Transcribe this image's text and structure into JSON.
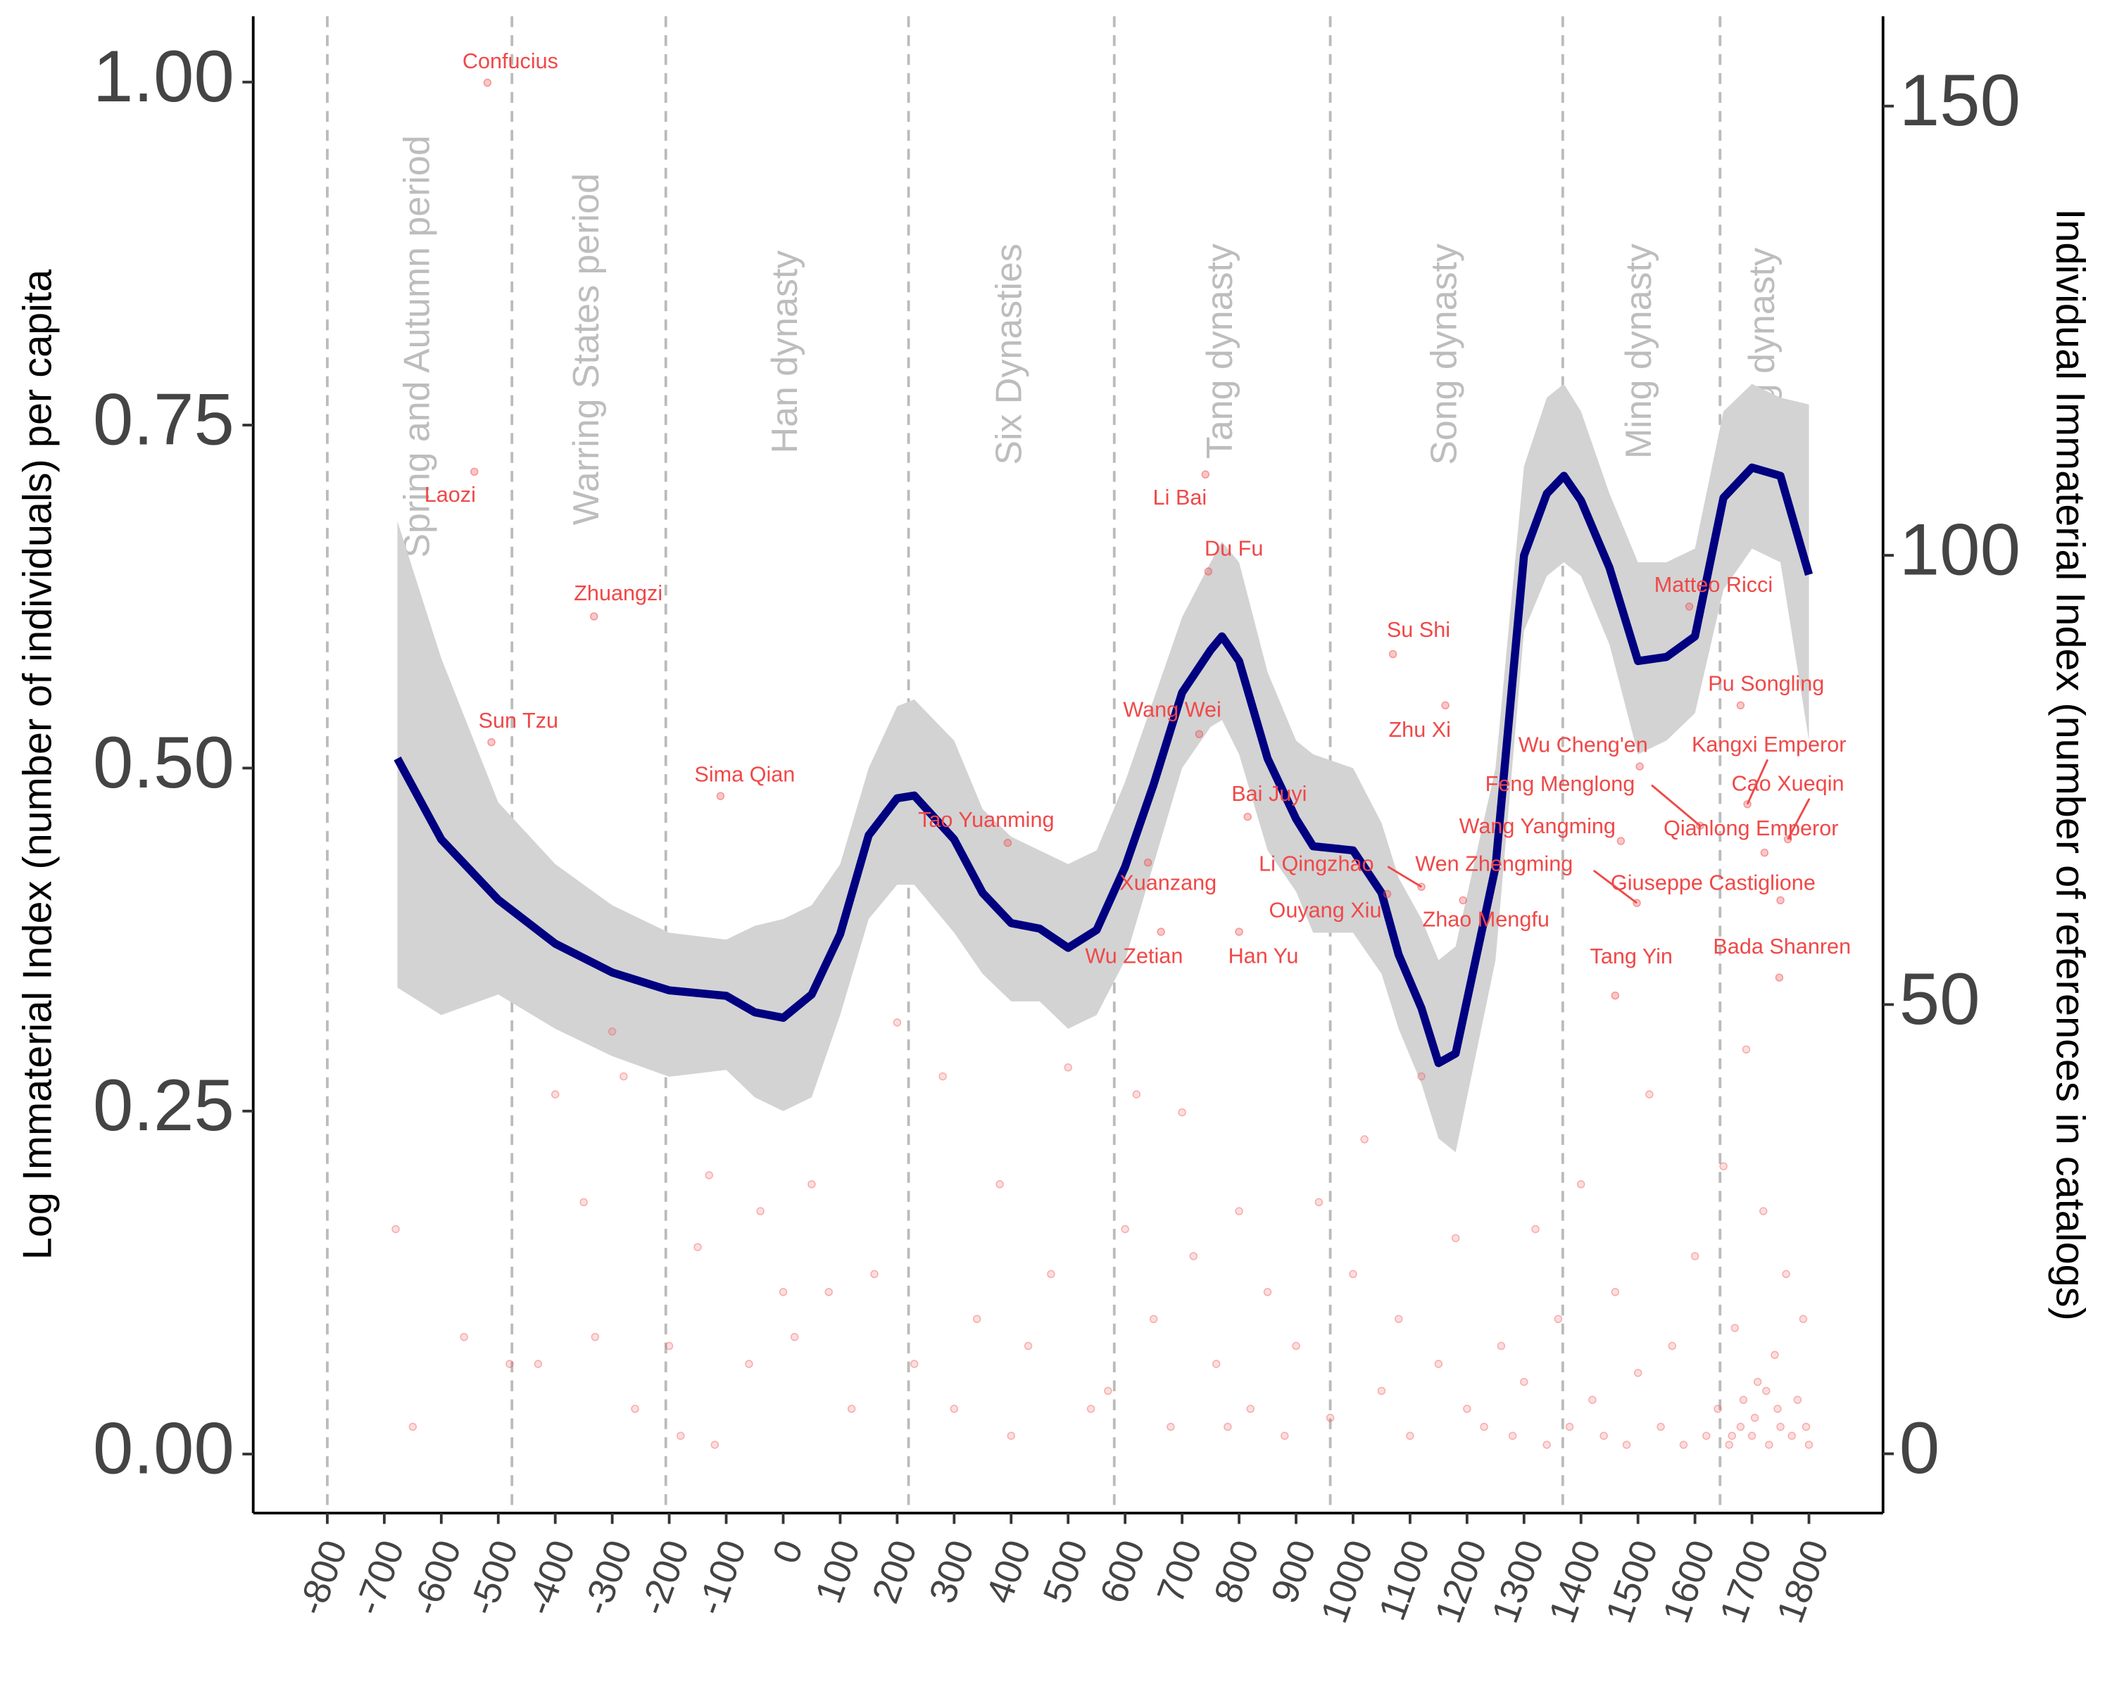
{
  "chart_data": {
    "type": "line",
    "y_label": "Log Immaterial Index (number of individuals) per capita",
    "y2_label": "Individual Immaterial Index (number of references in catalogs)",
    "xlim": [
      -930,
      1930
    ],
    "ylim": [
      -0.043,
      1.048
    ],
    "y2lim": [
      -6.6,
      160
    ],
    "xticks": [
      -800,
      -700,
      -600,
      -500,
      -400,
      -300,
      -200,
      -100,
      0,
      100,
      200,
      300,
      400,
      500,
      600,
      700,
      800,
      900,
      1000,
      1100,
      1200,
      1300,
      1400,
      1500,
      1600,
      1700,
      1800
    ],
    "yticks": [
      {
        "value": 0,
        "label": "0.00"
      },
      {
        "value": 0.25,
        "label": "0.25"
      },
      {
        "value": 0.5,
        "label": "0.50"
      },
      {
        "value": 0.75,
        "label": "0.75"
      },
      {
        "value": 1,
        "label": "1.00"
      }
    ],
    "y2ticks": [
      0,
      50,
      100,
      150
    ],
    "eras": {
      "names": [
        "Spring and Autumn period",
        "Warring States period",
        "Han dynasty",
        "Six Dynasties",
        "Tang dynasty",
        "Song dynasty",
        "Ming dynasty",
        "Qing dynasty"
      ],
      "starts": [
        -800,
        -476,
        -206,
        220,
        581,
        960,
        1368,
        1644
      ]
    },
    "x": [
      -677,
      -600,
      -500,
      -400,
      -300,
      -200,
      -100,
      -50,
      0,
      50,
      100,
      150,
      200,
      230,
      300,
      350,
      400,
      450,
      500,
      550,
      600,
      650,
      700,
      750,
      770,
      800,
      850,
      900,
      930,
      1000,
      1050,
      1080,
      1120,
      1150,
      1180,
      1250,
      1300,
      1340,
      1370,
      1400,
      1450,
      1500,
      1550,
      1600,
      1650,
      1700,
      1750,
      1800
    ],
    "series": [
      {
        "color": "#000080",
        "band_color": "#d3d3d3",
        "values": [
          0.507,
          0.448,
          0.404,
          0.372,
          0.351,
          0.338,
          0.334,
          0.322,
          0.318,
          0.335,
          0.379,
          0.451,
          0.478,
          0.48,
          0.448,
          0.409,
          0.387,
          0.383,
          0.369,
          0.382,
          0.428,
          0.488,
          0.555,
          0.586,
          0.596,
          0.578,
          0.507,
          0.463,
          0.443,
          0.44,
          0.409,
          0.364,
          0.325,
          0.285,
          0.292,
          0.428,
          0.655,
          0.7,
          0.713,
          0.695,
          0.646,
          0.578,
          0.581,
          0.596,
          0.697,
          0.719,
          0.713,
          0.641
        ],
        "lower": [
          0.34,
          0.32,
          0.335,
          0.31,
          0.29,
          0.275,
          0.28,
          0.26,
          0.25,
          0.26,
          0.32,
          0.39,
          0.415,
          0.415,
          0.38,
          0.35,
          0.33,
          0.33,
          0.31,
          0.32,
          0.36,
          0.43,
          0.5,
          0.53,
          0.535,
          0.51,
          0.44,
          0.41,
          0.38,
          0.38,
          0.35,
          0.31,
          0.27,
          0.23,
          0.22,
          0.36,
          0.6,
          0.64,
          0.65,
          0.64,
          0.59,
          0.51,
          0.52,
          0.54,
          0.63,
          0.66,
          0.65,
          0.52
        ],
        "upper": [
          0.68,
          0.58,
          0.475,
          0.43,
          0.4,
          0.38,
          0.375,
          0.385,
          0.39,
          0.4,
          0.43,
          0.5,
          0.545,
          0.55,
          0.52,
          0.47,
          0.45,
          0.44,
          0.43,
          0.44,
          0.49,
          0.55,
          0.61,
          0.65,
          0.665,
          0.65,
          0.57,
          0.52,
          0.51,
          0.5,
          0.46,
          0.42,
          0.39,
          0.36,
          0.37,
          0.5,
          0.72,
          0.77,
          0.78,
          0.76,
          0.7,
          0.65,
          0.65,
          0.66,
          0.76,
          0.78,
          0.77,
          0.765
        ]
      }
    ],
    "points": {
      "axis": "y2",
      "color": "#f25c5c",
      "x": [
        -680,
        -650,
        -560,
        -480,
        -430,
        -400,
        -350,
        -330,
        -300,
        -280,
        -260,
        -200,
        -180,
        -150,
        -130,
        -120,
        -60,
        -40,
        0,
        20,
        50,
        80,
        120,
        160,
        200,
        230,
        280,
        300,
        340,
        380,
        400,
        430,
        470,
        500,
        540,
        570,
        600,
        620,
        650,
        680,
        700,
        720,
        760,
        780,
        800,
        820,
        850,
        880,
        900,
        940,
        960,
        1000,
        1020,
        1050,
        1080,
        1100,
        1120,
        1150,
        1180,
        1200,
        1230,
        1260,
        1280,
        1300,
        1320,
        1340,
        1360,
        1380,
        1400,
        1420,
        1440,
        1460,
        1480,
        1500,
        1520,
        1540,
        1560,
        1580,
        1600,
        1620,
        1640,
        1650,
        1660,
        1670,
        1680,
        1690,
        1700,
        1710,
        1720,
        1730,
        1740,
        1750,
        1760,
        1770,
        1780,
        1790,
        1800,
        1795,
        1705,
        1685,
        1665,
        1745,
        1725
      ],
      "values": [
        25,
        3,
        13,
        10,
        10,
        40,
        28,
        13,
        47,
        42,
        5,
        12,
        2,
        23,
        31,
        1,
        10,
        27,
        18,
        13,
        30,
        18,
        5,
        20,
        48,
        10,
        42,
        5,
        15,
        30,
        2,
        12,
        20,
        43,
        5,
        7,
        25,
        40,
        15,
        3,
        38,
        22,
        10,
        3,
        27,
        5,
        18,
        2,
        12,
        28,
        4,
        20,
        35,
        7,
        15,
        2,
        42,
        10,
        24,
        5,
        3,
        12,
        2,
        8,
        25,
        1,
        15,
        3,
        30,
        6,
        2,
        18,
        1,
        9,
        40,
        3,
        12,
        1,
        22,
        2,
        5,
        32,
        1,
        14,
        3,
        45,
        2,
        8,
        27,
        1,
        11,
        3,
        20,
        2,
        6,
        15,
        1,
        3,
        4,
        6,
        2,
        5,
        7
      ]
    },
    "people": {
      "axis": "y2",
      "color": "#f04848",
      "names": [
        "Confucius",
        "Laozi",
        "Zhuangzi",
        "Sun Tzu",
        "Sima Qian",
        "Tao Yuanming",
        "Li Bai",
        "Du Fu",
        "Wang Wei",
        "Bai Juyi",
        "Xuanzang",
        "Wu Zetian",
        "Han Yu",
        "Ouyang Xiu",
        "Li Qingzhao",
        "Wen Zhengming",
        "Zhao Mengfu",
        "Su Shi",
        "Zhu Xi",
        "Wu Cheng'en",
        "Feng Menglong",
        "Wang Yangming",
        "Matteo Ricci",
        "Pu Songling",
        "Kangxi Emperor",
        "Cao Xueqin",
        "Qianlong Emperor",
        "Giuseppe Castiglione",
        "Tang Yin",
        "Bada Shanren"
      ],
      "x": [
        -519,
        -542,
        -332,
        -512,
        -110,
        394,
        741,
        746,
        730,
        815,
        640,
        663,
        800,
        1060,
        1120,
        1498,
        1193,
        1070,
        1162,
        1503,
        1609,
        1470,
        1590,
        1680,
        1692,
        1763,
        1722,
        1750,
        1460,
        1748
      ],
      "values": [
        152.6,
        109.3,
        93.2,
        79.2,
        73.2,
        68,
        109,
        98.2,
        80.1,
        70.9,
        65.8,
        58.1,
        58.1,
        62.3,
        63.1,
        61.3,
        61.6,
        89,
        83.3,
        76.5,
        69.9,
        68.2,
        94.3,
        83.3,
        72.3,
        68.4,
        66.9,
        61.6,
        51,
        53
      ]
    }
  }
}
